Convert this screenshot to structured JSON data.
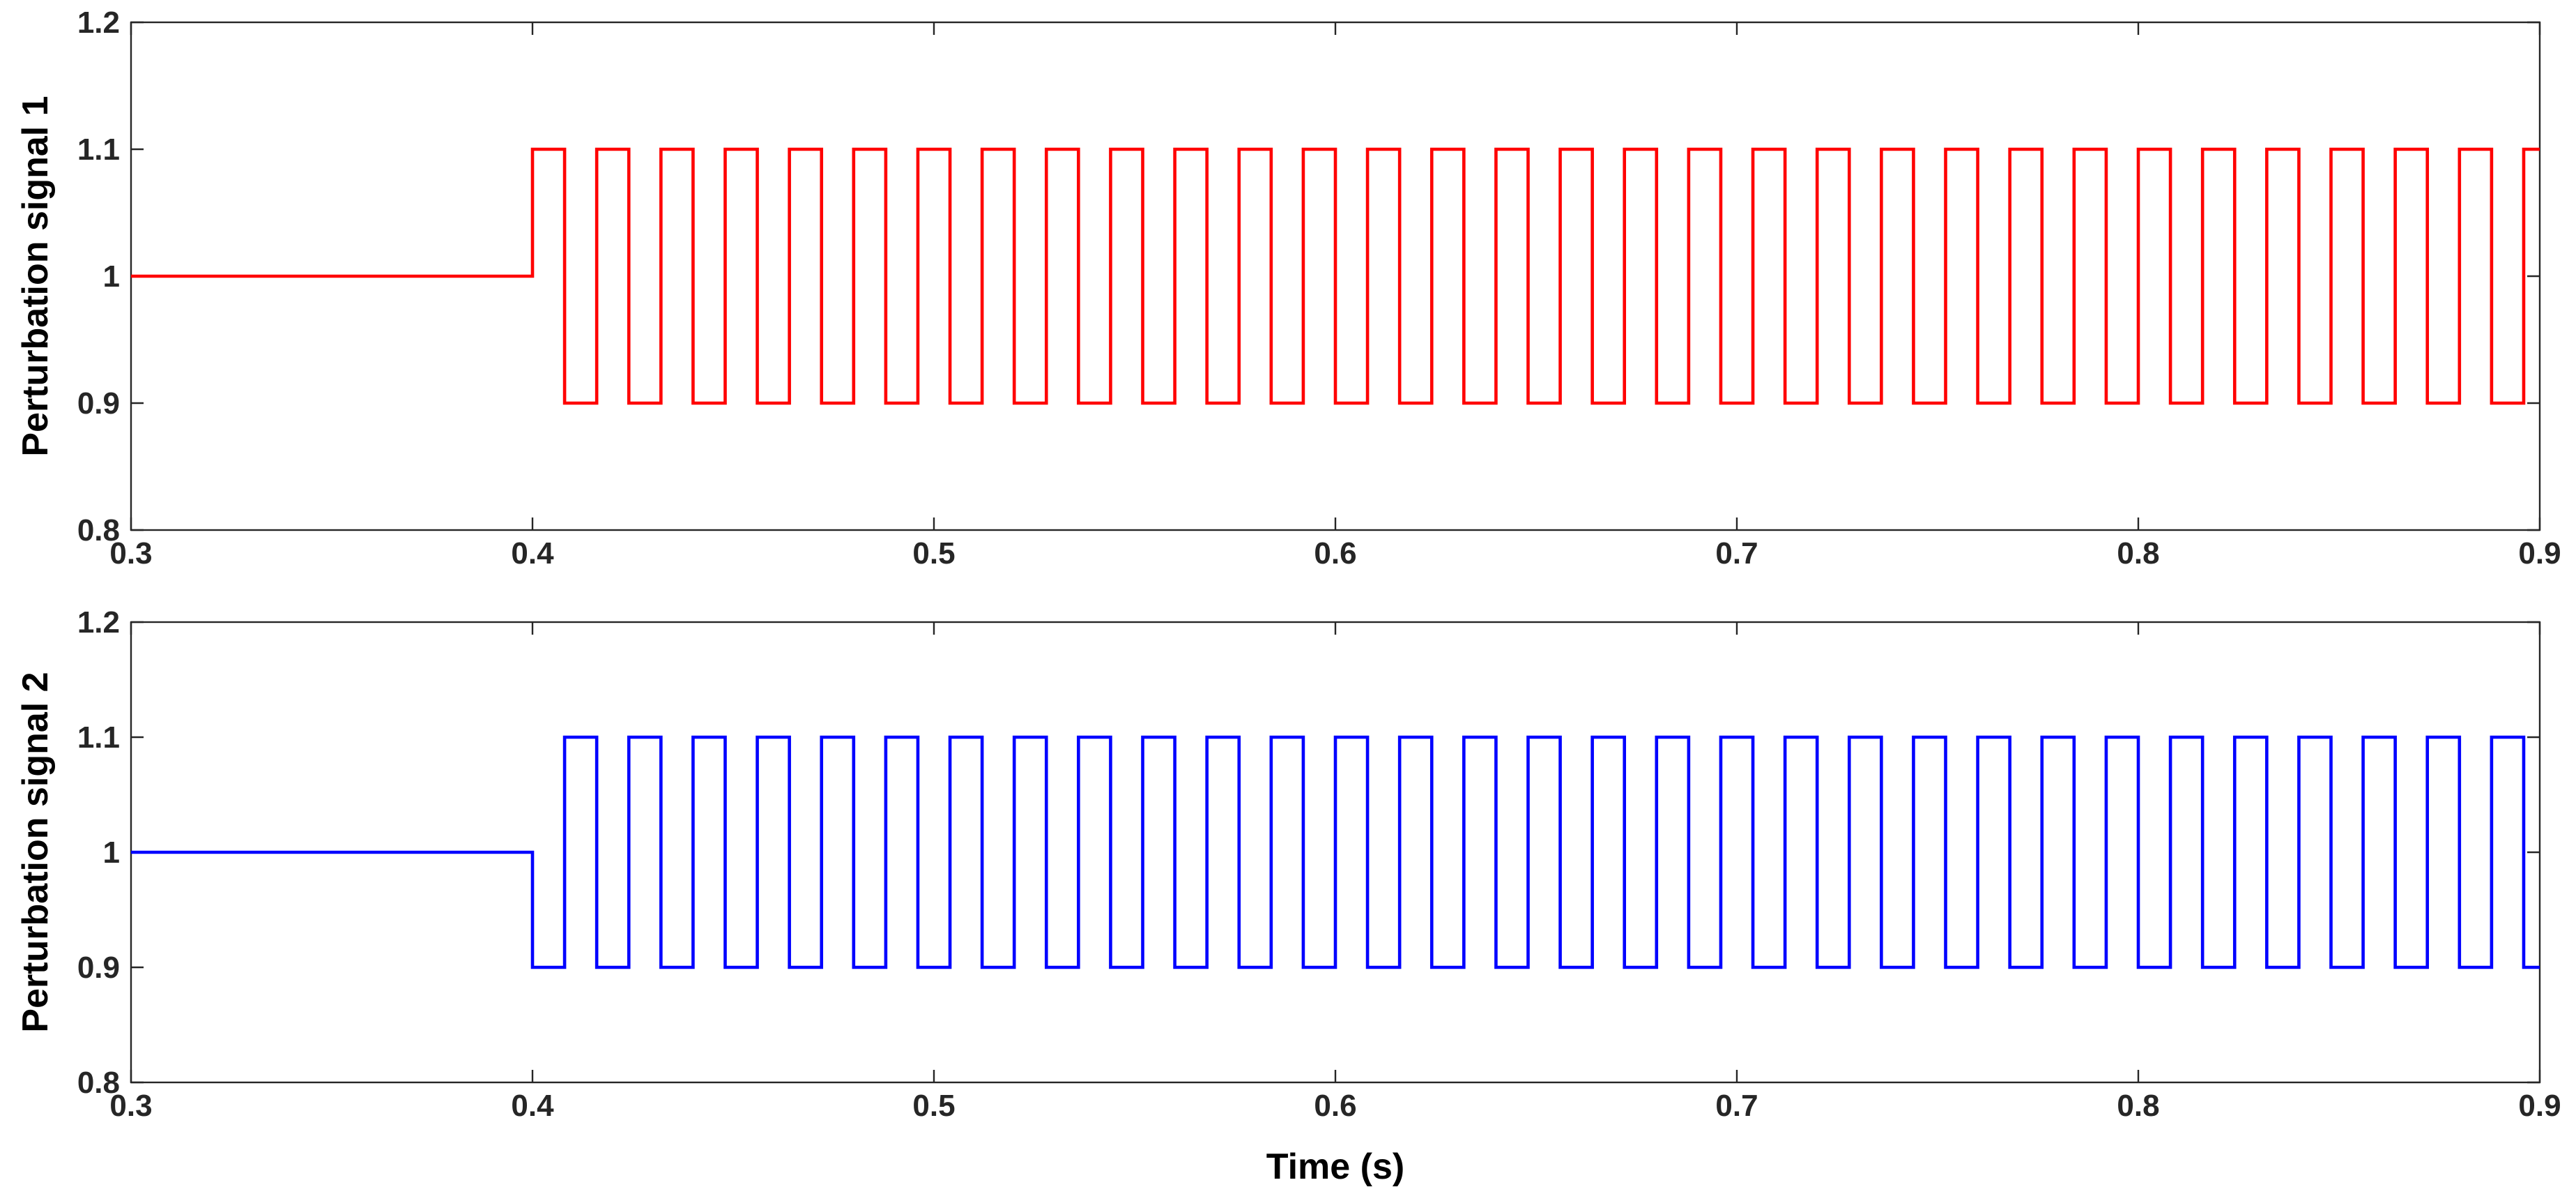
{
  "chart_data": [
    {
      "type": "line",
      "title": "",
      "xlabel": "",
      "ylabel": "Perturbation signal 1",
      "xlim": [
        0.3,
        0.9
      ],
      "ylim": [
        0.8,
        1.2
      ],
      "xticks": [
        0.3,
        0.4,
        0.5,
        0.6,
        0.7,
        0.8,
        0.9
      ],
      "yticks": [
        0.8,
        0.9,
        1,
        1.1,
        1.2
      ],
      "grid": false,
      "series": [
        {
          "color": "#ff0000",
          "baseline": {
            "x": [
              0.3,
              0.4
            ],
            "value": 1.0
          },
          "square_wave": {
            "start": 0.4,
            "period": 0.016,
            "high": 1.1,
            "low": 0.9,
            "first_level": 1.1,
            "end": 0.9
          }
        }
      ]
    },
    {
      "type": "line",
      "title": "",
      "xlabel": "Time (s)",
      "ylabel": "Perturbation signal 2",
      "xlim": [
        0.3,
        0.9
      ],
      "ylim": [
        0.8,
        1.2
      ],
      "xticks": [
        0.3,
        0.4,
        0.5,
        0.6,
        0.7,
        0.8,
        0.9
      ],
      "yticks": [
        0.8,
        0.9,
        1,
        1.1,
        1.2
      ],
      "grid": false,
      "series": [
        {
          "color": "#0000ff",
          "baseline": {
            "x": [
              0.3,
              0.4
            ],
            "value": 1.0
          },
          "square_wave": {
            "start": 0.4,
            "period": 0.016,
            "high": 1.1,
            "low": 0.9,
            "first_level": 0.9,
            "end": 0.9
          }
        }
      ]
    }
  ]
}
